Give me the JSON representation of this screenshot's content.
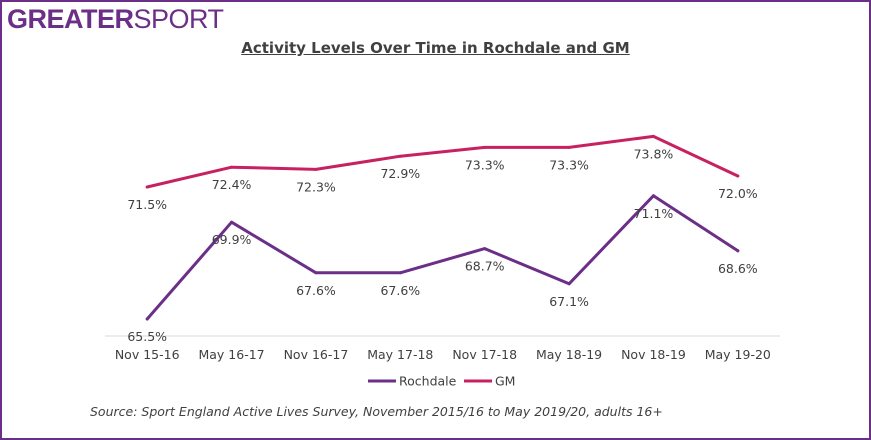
{
  "logo": {
    "part1": "GREATER",
    "part2": "SPORT"
  },
  "source": "Source: Sport England Active Lives Survey, November 2015/16 to May 2019/20, adults 16+",
  "colors": {
    "brand": "#6b2f87",
    "rochdale": "#6b2f87",
    "gm": "#c8215f",
    "text": "#404040",
    "axis": "#d9d9d9"
  },
  "chart_data": {
    "type": "line",
    "title": "Activity Levels Over Time in Rochdale and GM",
    "xlabel": "",
    "ylabel": "",
    "categories": [
      "Nov 15-16",
      "May 16-17",
      "Nov 16-17",
      "May 17-18",
      "Nov 17-18",
      "May 18-19",
      "Nov 18-19",
      "May 19-20"
    ],
    "series": [
      {
        "name": "Rochdale",
        "values": [
          65.5,
          69.9,
          67.6,
          67.6,
          68.7,
          67.1,
          71.1,
          68.6
        ],
        "labels": [
          "65.5%",
          "69.9%",
          "67.6%",
          "67.6%",
          "68.7%",
          "67.1%",
          "71.1%",
          "68.6%"
        ],
        "color": "#6b2f87",
        "label_position": "below"
      },
      {
        "name": "GM",
        "values": [
          71.5,
          72.4,
          72.3,
          72.9,
          73.3,
          73.3,
          73.8,
          72.0
        ],
        "labels": [
          "71.5%",
          "72.4%",
          "72.3%",
          "72.9%",
          "73.3%",
          "73.3%",
          "73.8%",
          "72.0%"
        ],
        "color": "#c8215f",
        "label_position": "below"
      }
    ],
    "ylim": [
      60,
      80
    ],
    "grid": false,
    "legend": "bottom"
  }
}
